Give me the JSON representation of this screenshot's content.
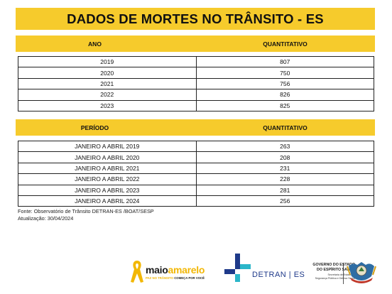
{
  "title": "DADOS DE MORTES NO TRÂNSITO - ES",
  "table1": {
    "col1": "ANO",
    "col2": "QUANTITATIVO",
    "rows": [
      {
        "label": "2019",
        "value": "807"
      },
      {
        "label": "2020",
        "value": "750"
      },
      {
        "label": "2021",
        "value": "756"
      },
      {
        "label": "2022",
        "value": "826"
      },
      {
        "label": "2023",
        "value": "825"
      }
    ]
  },
  "table2": {
    "col1": "PERÍODO",
    "col2": "QUANTITATIVO",
    "rows": [
      {
        "label": "JANEIRO A ABRIL 2019",
        "value": "263"
      },
      {
        "label": "JANEIRO A ABRIL 2020",
        "value": "208"
      },
      {
        "label": "JANEIRO A ABRIL 2021",
        "value": "231"
      },
      {
        "label": "JANEIRO A ABRIL 2022",
        "value": "228"
      },
      {
        "label": "JANEIRO A ABRIL 2023",
        "value": "281"
      },
      {
        "label": "JANEIRO A ABRIL 2024",
        "value": "256"
      }
    ]
  },
  "source": "Fonte: Observatório de Trânsito DETRAN-ES /BOAT/SESP",
  "updated": "Atualização: 30/04/2024",
  "footer": {
    "maio_part1": "maio",
    "maio_part2": "amarelo",
    "maio_tag_part1": "PAZ NO TRÂNSITO",
    "maio_tag_part2": " COMEÇA POR VOCÊ",
    "detran": "DETRAN | ES",
    "gov_line1": "GOVERNO DO ESTADO",
    "gov_line2": "DO ESPÍRITO SANTO",
    "gov_line3": "Secretaria de Estado de",
    "gov_line4": "Segurança Pública e Defesa Social"
  },
  "colors": {
    "accent": "#f6cb2c",
    "brand_blue": "#1f3a8a"
  }
}
